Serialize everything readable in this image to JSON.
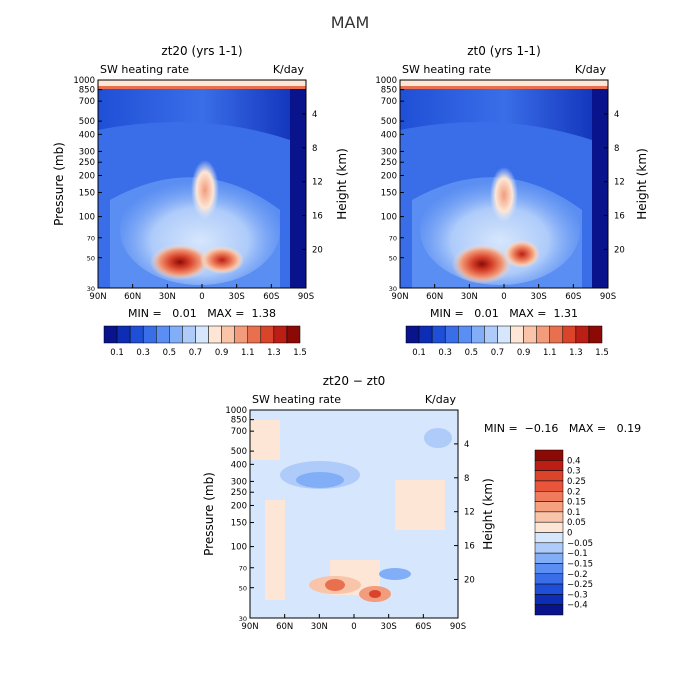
{
  "figure_title": "MAM",
  "chart_data": [
    {
      "type": "heatmap",
      "title": "zt20 (yrs 1-1)",
      "subtitle": "SW heating rate",
      "units": "K/day",
      "ylabel": "Pressure (mb)",
      "ylabel_right": "Height (km)",
      "x_ticks": [
        "90N",
        "60N",
        "30N",
        "0",
        "30S",
        "60S",
        "90S"
      ],
      "y_ticks": [
        "30",
        "50",
        "70",
        "100",
        "150",
        "200",
        "250",
        "300",
        "400",
        "500",
        "700",
        "850",
        "1000"
      ],
      "y_ticks_right": [
        "20",
        "16",
        "12",
        "8",
        "4"
      ],
      "ylim": [
        1000,
        30
      ],
      "y_scale": "log",
      "stats": "MIN =   0.01   MAX =  1.38",
      "colorbar_labels": [
        "0.1",
        "0.3",
        "0.5",
        "0.7",
        "0.9",
        "1.1",
        "1.3",
        "1.5"
      ],
      "colorbar_colors": [
        "#08138c",
        "#0d2db5",
        "#1f4fd6",
        "#3a6ee8",
        "#5b8ef2",
        "#82aef7",
        "#aecbfa",
        "#d6e6fc",
        "#fde6d6",
        "#f9c4a8",
        "#f29c7b",
        "#e8704f",
        "#d9442b",
        "#bb1e14",
        "#8c0a06"
      ]
    },
    {
      "type": "heatmap",
      "title": "zt0 (yrs 1-1)",
      "subtitle": "SW heating rate",
      "units": "K/day",
      "ylabel": "Pressure (mb)",
      "ylabel_right": "Height (km)",
      "x_ticks": [
        "90N",
        "60N",
        "30N",
        "0",
        "30S",
        "60S",
        "90S"
      ],
      "y_ticks": [
        "30",
        "50",
        "70",
        "100",
        "150",
        "200",
        "250",
        "300",
        "400",
        "500",
        "700",
        "850",
        "1000"
      ],
      "y_ticks_right": [
        "20",
        "16",
        "12",
        "8",
        "4"
      ],
      "ylim": [
        1000,
        30
      ],
      "y_scale": "log",
      "stats": "MIN =   0.01   MAX =  1.31",
      "colorbar_labels": [
        "0.1",
        "0.3",
        "0.5",
        "0.7",
        "0.9",
        "1.1",
        "1.3",
        "1.5"
      ],
      "colorbar_colors": [
        "#08138c",
        "#0d2db5",
        "#1f4fd6",
        "#3a6ee8",
        "#5b8ef2",
        "#82aef7",
        "#aecbfa",
        "#d6e6fc",
        "#fde6d6",
        "#f9c4a8",
        "#f29c7b",
        "#e8704f",
        "#d9442b",
        "#bb1e14",
        "#8c0a06"
      ]
    },
    {
      "type": "heatmap",
      "title": "zt20 − zt0",
      "subtitle": "SW heating rate",
      "units": "K/day",
      "ylabel": "Pressure (mb)",
      "ylabel_right": "Height (km)",
      "x_ticks": [
        "90N",
        "60N",
        "30N",
        "0",
        "30S",
        "60S",
        "90S"
      ],
      "y_ticks": [
        "30",
        "50",
        "70",
        "100",
        "150",
        "200",
        "250",
        "300",
        "400",
        "500",
        "700",
        "850",
        "1000"
      ],
      "y_ticks_right": [
        "20",
        "16",
        "12",
        "8",
        "4"
      ],
      "ylim": [
        1000,
        30
      ],
      "y_scale": "log",
      "stats": "MIN =  −0.16   MAX =   0.19",
      "colorbar_labels": [
        "0.4",
        "0.3",
        "0.25",
        "0.2",
        "0.15",
        "0.1",
        "0.05",
        "0",
        "−0.05",
        "−0.1",
        "−0.15",
        "−0.2",
        "−0.25",
        "−0.3",
        "−0.4"
      ],
      "colorbar_colors": [
        "#8c0a06",
        "#bb1e14",
        "#d9442b",
        "#e8553a",
        "#f07b5c",
        "#f5a07f",
        "#f9c4a8",
        "#fde6d6",
        "#d6e6fc",
        "#aecbfa",
        "#82aef7",
        "#5b8ef2",
        "#3a6ee8",
        "#1f4fd6",
        "#0d2db5",
        "#08138c"
      ]
    }
  ]
}
